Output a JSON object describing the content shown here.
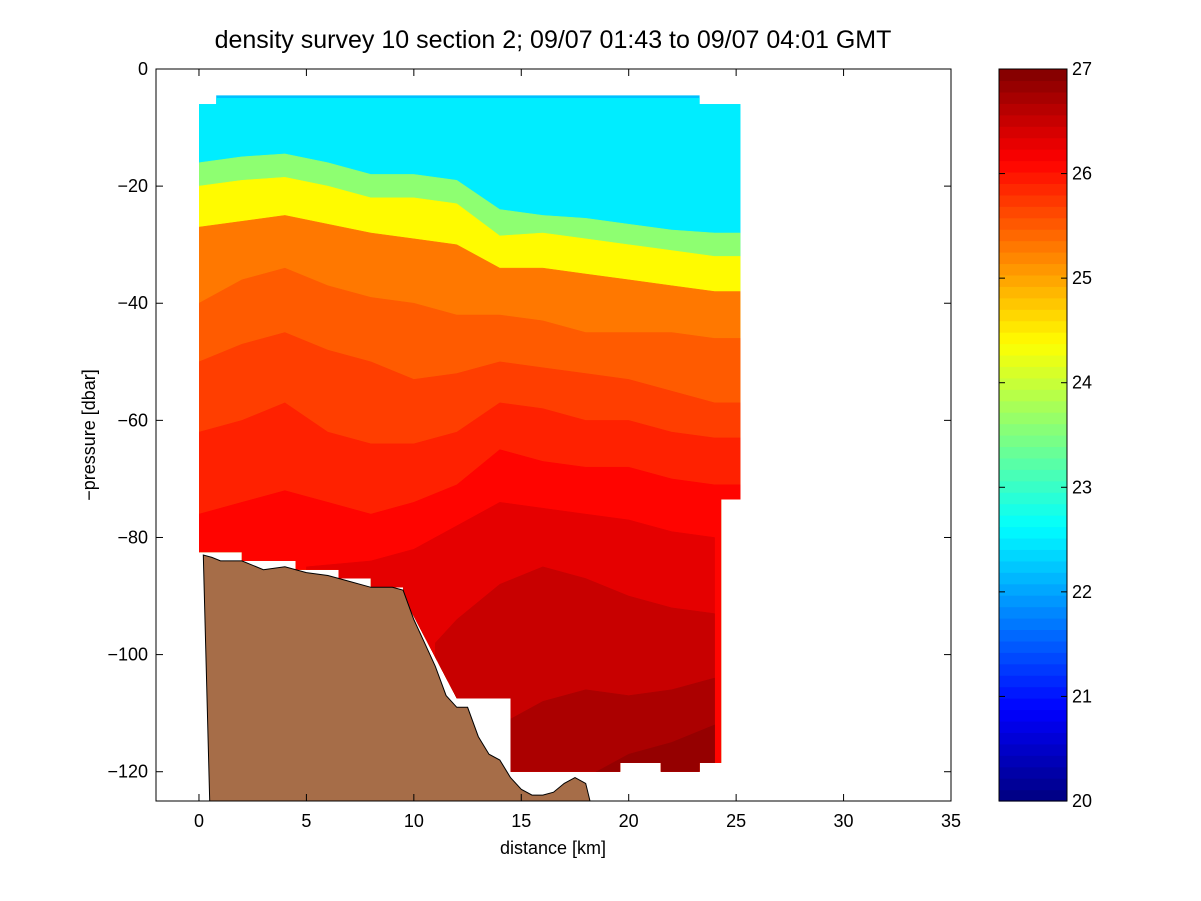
{
  "chart_data": {
    "type": "heatmap",
    "title": "density survey 10 section 2; 09/07 01:43 to 09/07 04:01 GMT",
    "xlabel": "distance [km]",
    "ylabel": "−pressure [dbar]",
    "xlim": [
      -2,
      35
    ],
    "ylim": [
      -125,
      0
    ],
    "xticks": [
      0,
      5,
      10,
      15,
      20,
      25,
      30,
      35
    ],
    "yticks": [
      0,
      -20,
      -40,
      -60,
      -80,
      -100,
      -120
    ],
    "xtick_labels": [
      "0",
      "5",
      "10",
      "15",
      "20",
      "25",
      "30",
      "35"
    ],
    "ytick_labels": [
      "0",
      "−20",
      "−40",
      "−60",
      "−80",
      "−100",
      "−120"
    ],
    "colorbar": {
      "range": [
        20,
        27
      ],
      "ticks": [
        20,
        21,
        22,
        23,
        24,
        25,
        26,
        27
      ],
      "tick_labels": [
        "20",
        "21",
        "22",
        "23",
        "24",
        "25",
        "26",
        "27"
      ],
      "colormap": "jet"
    },
    "isopycnals": [
      {
        "value": 22.5,
        "x": [
          0,
          25.2
        ],
        "depth": [
          -5,
          -5
        ]
      },
      {
        "value": 23.6,
        "x": [
          0,
          2,
          4,
          6,
          8,
          10,
          12,
          14,
          16,
          18,
          20,
          22,
          24,
          25.2
        ],
        "depth": [
          -16,
          -15,
          -14.5,
          -16,
          -18,
          -18,
          -19,
          -24,
          -25,
          -25.5,
          -26.5,
          -27.5,
          -28,
          -28
        ]
      },
      {
        "value": 24.4,
        "x": [
          0,
          2,
          4,
          6,
          8,
          10,
          12,
          14,
          16,
          18,
          20,
          22,
          24,
          25.2
        ],
        "depth": [
          -20,
          -19,
          -18.5,
          -20,
          -22,
          -22,
          -23,
          -28.5,
          -28,
          -29,
          -30,
          -31,
          -32,
          -32
        ]
      },
      {
        "value": 25.3,
        "x": [
          0,
          2,
          4,
          6,
          8,
          10,
          12,
          14,
          16,
          18,
          20,
          22,
          24,
          25.2
        ],
        "depth": [
          -27,
          -26,
          -25,
          -26.5,
          -28,
          -29,
          -30,
          -34,
          -34,
          -35,
          -36,
          -37,
          -38,
          -38
        ]
      },
      {
        "value": 25.5,
        "x": [
          0,
          2,
          4,
          6,
          8,
          10,
          12,
          14,
          16,
          18,
          20,
          22,
          24,
          25.2
        ],
        "depth": [
          -40,
          -36,
          -34,
          -37,
          -39,
          -40,
          -42,
          -42,
          -43,
          -45,
          -45,
          -45,
          -46,
          -46
        ]
      },
      {
        "value": 25.7,
        "x": [
          0,
          2,
          4,
          6,
          8,
          10,
          12,
          14,
          16,
          18,
          20,
          22,
          24,
          25.2
        ],
        "depth": [
          -50,
          -47,
          -45,
          -48,
          -50,
          -53,
          -52,
          -50,
          -51,
          -52,
          -53,
          -55,
          -57,
          -57
        ]
      },
      {
        "value": 25.9,
        "x": [
          0,
          2,
          4,
          6,
          8,
          10,
          12,
          14,
          16,
          18,
          20,
          22,
          24,
          25.2
        ],
        "depth": [
          -62,
          -60,
          -57,
          -62,
          -64,
          -64,
          -62,
          -57,
          -58,
          -60,
          -60,
          -62,
          -63,
          -63
        ]
      },
      {
        "value": 26.1,
        "x": [
          0,
          2,
          4,
          6,
          8,
          10,
          12,
          14,
          16,
          18,
          20,
          22,
          24,
          25.2
        ],
        "depth": [
          -76,
          -74,
          -72,
          -74,
          -76,
          -74,
          -71,
          -65,
          -67,
          -68,
          -68,
          -70,
          -71,
          -71
        ]
      },
      {
        "value": 26.3,
        "x": [
          5,
          8,
          10,
          12,
          14,
          16,
          18,
          20,
          22,
          24
        ],
        "depth": [
          -85,
          -84,
          -82,
          -78,
          -74,
          -75,
          -76,
          -77,
          -79,
          -80
        ]
      },
      {
        "value": 26.5,
        "x": [
          11,
          12,
          14,
          16,
          18,
          20,
          22,
          24
        ],
        "depth": [
          -98,
          -94,
          -88,
          -85,
          -87,
          -90,
          -92,
          -93
        ]
      },
      {
        "value": 26.7,
        "x": [
          14,
          16,
          18,
          20,
          22,
          24
        ],
        "depth": [
          -112,
          -108,
          -106,
          -107,
          -106,
          -104
        ]
      },
      {
        "value": 26.85,
        "x": [
          18,
          20,
          22,
          24
        ],
        "depth": [
          -121,
          -117,
          -115,
          -112
        ]
      }
    ],
    "bottom_profile": {
      "x": [
        0.2,
        0.6,
        1,
        2,
        3,
        4,
        5,
        6,
        7,
        8,
        9,
        9.5,
        10,
        10.5,
        11,
        11.5,
        12,
        12.5,
        13,
        13.5,
        14,
        14.5,
        15,
        15.5,
        16,
        16.5,
        17,
        17.5,
        18
      ],
      "depth": [
        -83,
        -83.4,
        -84,
        -84,
        -85.5,
        -85,
        -86,
        -86.5,
        -87.5,
        -88.5,
        -88.5,
        -89,
        -94,
        -98,
        -102,
        -107,
        -109,
        -109,
        -114,
        -117,
        -118,
        -121,
        -123,
        -124,
        -124,
        -123.5,
        -122,
        -121,
        -122
      ]
    }
  }
}
